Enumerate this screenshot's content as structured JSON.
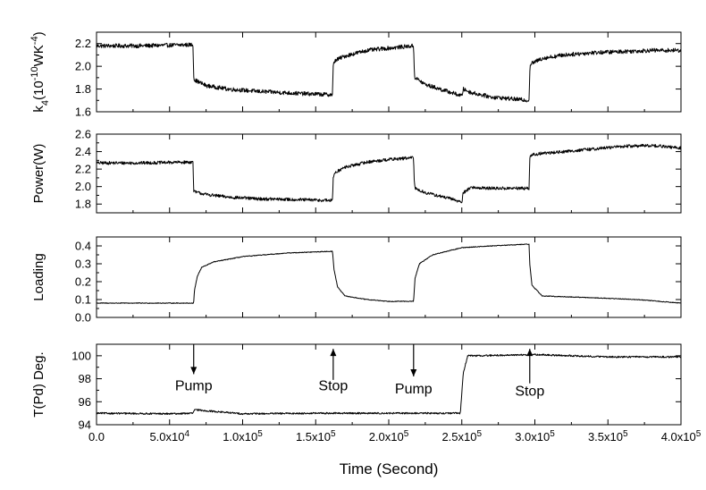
{
  "chart_data": {
    "type": "line",
    "grid": false,
    "xlabel": "Time (Second)",
    "xlim": [
      0,
      400000
    ],
    "x_ticks": [
      0,
      50000,
      100000,
      150000,
      200000,
      250000,
      300000,
      350000,
      400000
    ],
    "x_tick_labels": [
      {
        "mant": "0.0",
        "exp": ""
      },
      {
        "mant": "5.0x10",
        "exp": "4"
      },
      {
        "mant": "1.0x10",
        "exp": "5"
      },
      {
        "mant": "1.5x10",
        "exp": "5"
      },
      {
        "mant": "2.0x10",
        "exp": "5"
      },
      {
        "mant": "2.5x10",
        "exp": "5"
      },
      {
        "mant": "3.0x10",
        "exp": "5"
      },
      {
        "mant": "3.5x10",
        "exp": "5"
      },
      {
        "mant": "4.0x10",
        "exp": "5"
      }
    ],
    "panels": [
      {
        "id": "k4",
        "ylabel": {
          "main": "k",
          "sub": "4",
          "mid": "(10",
          "sup1": "-10",
          "mid2": "WK",
          "sup2": "-4",
          "end": ")"
        },
        "ylim": [
          1.6,
          2.3
        ],
        "yticks": [
          1.6,
          1.8,
          2.0,
          2.2
        ],
        "ytick_labels": [
          "1.6",
          "1.8",
          "2.0",
          "2.2"
        ],
        "noise": 0.018,
        "series": {
          "x": [
            0,
            30000,
            66000,
            66500,
            67000,
            75000,
            90000,
            110000,
            140000,
            161500,
            162000,
            163000,
            170000,
            185000,
            200000,
            217000,
            217500,
            218000,
            225000,
            245000,
            250000,
            251000,
            256000,
            270000,
            296000,
            296500,
            297000,
            305000,
            320000,
            340000,
            360000,
            380000,
            400000
          ],
          "y": [
            2.18,
            2.18,
            2.19,
            1.92,
            1.88,
            1.83,
            1.8,
            1.78,
            1.76,
            1.75,
            2.0,
            2.05,
            2.09,
            2.14,
            2.16,
            2.18,
            1.95,
            1.9,
            1.84,
            1.76,
            1.74,
            1.8,
            1.77,
            1.73,
            1.7,
            1.95,
            2.02,
            2.07,
            2.1,
            2.12,
            2.13,
            2.14,
            2.14
          ]
        }
      },
      {
        "id": "power",
        "ylabel": {
          "main": "Power(W)"
        },
        "ylim": [
          1.7,
          2.6
        ],
        "yticks": [
          1.8,
          2.0,
          2.2,
          2.4,
          2.6
        ],
        "ytick_labels": [
          "1.8",
          "2.0",
          "2.2",
          "2.4",
          "2.6"
        ],
        "noise": 0.018,
        "series": {
          "x": [
            0,
            30000,
            66000,
            66500,
            67000,
            75000,
            90000,
            110000,
            140000,
            161500,
            162000,
            163000,
            170000,
            185000,
            200000,
            217000,
            217500,
            218000,
            225000,
            245000,
            250000,
            251000,
            256000,
            270000,
            296000,
            296500,
            297000,
            305000,
            320000,
            340000,
            360000,
            380000,
            400000
          ],
          "y": [
            2.27,
            2.27,
            2.28,
            1.96,
            1.94,
            1.91,
            1.88,
            1.86,
            1.85,
            1.84,
            2.1,
            2.16,
            2.22,
            2.28,
            2.31,
            2.33,
            2.05,
            1.98,
            1.93,
            1.85,
            1.82,
            1.93,
            1.99,
            1.98,
            1.98,
            2.3,
            2.36,
            2.38,
            2.4,
            2.43,
            2.46,
            2.47,
            2.44
          ]
        }
      },
      {
        "id": "loading",
        "ylabel": {
          "main": "Loading"
        },
        "ylim": [
          0.0,
          0.45
        ],
        "yticks": [
          0.0,
          0.1,
          0.2,
          0.3,
          0.4
        ],
        "ytick_labels": [
          "0.0",
          "0.1",
          "0.2",
          "0.3",
          "0.4"
        ],
        "noise": 0.002,
        "series": {
          "x": [
            0,
            30000,
            66500,
            67000,
            69000,
            72000,
            80000,
            100000,
            130000,
            161500,
            162500,
            165000,
            170000,
            185000,
            200000,
            217000,
            218000,
            221000,
            230000,
            250000,
            270000,
            296000,
            296500,
            298000,
            305000,
            340000,
            370000,
            400000
          ],
          "y": [
            0.08,
            0.08,
            0.08,
            0.15,
            0.23,
            0.28,
            0.31,
            0.34,
            0.36,
            0.37,
            0.27,
            0.17,
            0.12,
            0.1,
            0.09,
            0.09,
            0.22,
            0.3,
            0.35,
            0.39,
            0.4,
            0.41,
            0.3,
            0.18,
            0.12,
            0.11,
            0.1,
            0.08
          ]
        }
      },
      {
        "id": "temp",
        "ylabel": {
          "main": "T(Pd) Deg."
        },
        "ylim": [
          94,
          101
        ],
        "yticks": [
          94,
          96,
          98,
          100
        ],
        "ytick_labels": [
          "94",
          "96",
          "98",
          "100"
        ],
        "noise": 0.07,
        "series": {
          "x": [
            0,
            50000,
            66000,
            67000,
            100000,
            150000,
            200000,
            249000,
            251000,
            254000,
            260000,
            300000,
            350000,
            400000
          ],
          "y": [
            95.0,
            94.95,
            95.0,
            95.3,
            94.95,
            95.0,
            95.0,
            95.0,
            98.5,
            100.0,
            100.0,
            100.1,
            99.9,
            99.9
          ]
        },
        "annotations": [
          {
            "text": "Pump",
            "arrow_x": 66500,
            "direction": "down",
            "arrow_top": 101,
            "arrow_bottom": 98.4,
            "label_y": 97.4
          },
          {
            "text": "Stop",
            "arrow_x": 162000,
            "direction": "up",
            "arrow_top": 100.6,
            "arrow_bottom": 97.9,
            "label_y": 97.4
          },
          {
            "text": "Pump",
            "arrow_x": 217000,
            "direction": "down",
            "arrow_top": 101,
            "arrow_bottom": 98.2,
            "label_y": 97.1
          },
          {
            "text": "Stop",
            "arrow_x": 296500,
            "direction": "up",
            "arrow_top": 100.6,
            "arrow_bottom": 97.6,
            "label_y": 96.9
          }
        ]
      }
    ]
  }
}
